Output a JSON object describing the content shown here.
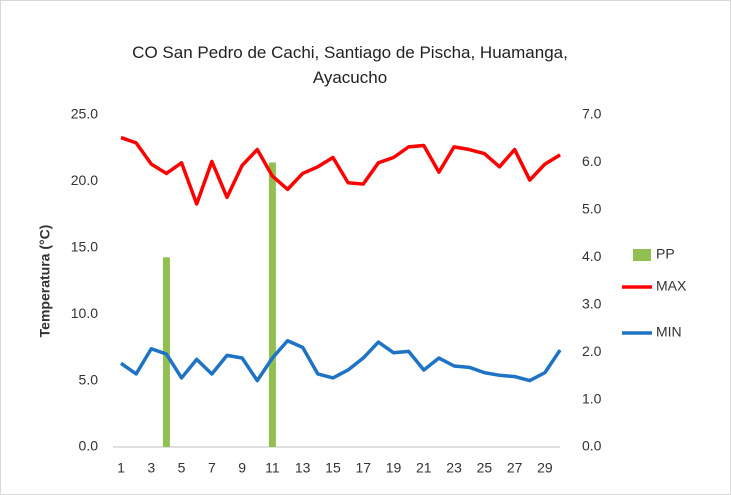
{
  "chart_data": {
    "type": "line",
    "title": "CO San Pedro de Cachi, Santiago de Pischa, Huamanga, Ayacucho",
    "y_label": "Temperatura (°C)",
    "categories": [
      1,
      null,
      3,
      null,
      5,
      null,
      7,
      null,
      9,
      null,
      11,
      null,
      13,
      null,
      15,
      null,
      17,
      null,
      19,
      null,
      21,
      null,
      23,
      null,
      25,
      null,
      27,
      null,
      29,
      null
    ],
    "series": [
      {
        "name": "PP",
        "type": "bar",
        "axis": "y2",
        "color": "#92c050",
        "values": [
          0,
          0,
          0,
          4.0,
          0,
          0,
          0,
          0,
          0,
          0,
          6.0,
          0,
          0,
          0,
          0,
          0,
          0,
          0,
          0,
          0,
          0,
          0,
          0,
          0,
          0,
          0,
          0,
          0,
          0,
          0
        ]
      },
      {
        "name": "MAX",
        "type": "line",
        "color": "#ff0000",
        "values": [
          23.3,
          22.9,
          21.3,
          20.6,
          21.4,
          18.3,
          21.5,
          18.8,
          21.2,
          22.4,
          20.4,
          19.4,
          20.6,
          21.1,
          21.8,
          19.9,
          19.8,
          21.4,
          21.8,
          22.6,
          22.7,
          20.7,
          22.6,
          22.4,
          22.1,
          21.1,
          22.4,
          20.1,
          21.3,
          22.0
        ]
      },
      {
        "name": "MIN",
        "type": "line",
        "color": "#1f73c4",
        "values": [
          6.3,
          5.5,
          7.4,
          7.0,
          5.2,
          6.6,
          5.5,
          6.9,
          6.7,
          5.0,
          6.7,
          8.0,
          7.5,
          5.5,
          5.2,
          5.8,
          6.7,
          7.9,
          7.1,
          7.2,
          5.8,
          6.7,
          6.1,
          6.0,
          5.6,
          5.4,
          5.3,
          5.0,
          5.6,
          7.3
        ]
      }
    ],
    "ylim": [
      0,
      25
    ],
    "yticks": [
      {
        "value": 0,
        "label": "0.0"
      },
      {
        "value": 5,
        "label": "5.0"
      },
      {
        "value": 10,
        "label": "10.0"
      },
      {
        "value": 15,
        "label": "15.0"
      },
      {
        "value": 20,
        "label": "20.0"
      },
      {
        "value": 25,
        "label": "25.0"
      }
    ],
    "y2lim": [
      0,
      7
    ],
    "y2ticks": [
      {
        "value": 0,
        "label": "0.0"
      },
      {
        "value": 1,
        "label": "1.0"
      },
      {
        "value": 2,
        "label": "2.0"
      },
      {
        "value": 3,
        "label": "3.0"
      },
      {
        "value": 4,
        "label": "4.0"
      },
      {
        "value": 5,
        "label": "5.0"
      },
      {
        "value": 6,
        "label": "6.0"
      },
      {
        "value": 7,
        "label": "7.0"
      }
    ],
    "grid": false,
    "legend": "right"
  }
}
